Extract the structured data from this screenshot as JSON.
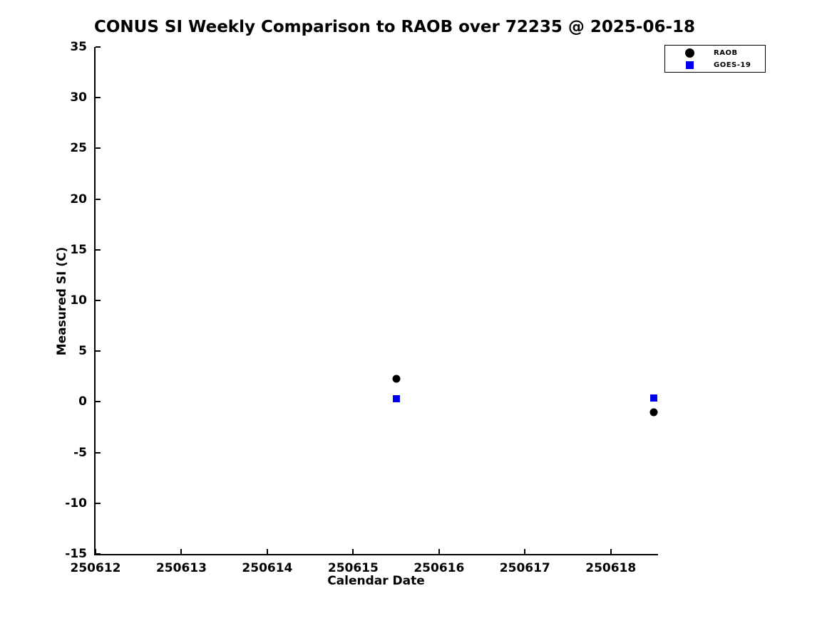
{
  "page": {
    "background": "#ffffff",
    "text_color": "#000000"
  },
  "chart_data": {
    "type": "scatter",
    "title": "CONUS SI Weekly Comparison to RAOB over 72235 @ 2025-06-18",
    "xlabel": "Calendar Date",
    "ylabel": "Measured SI (C)",
    "xlim": [
      250612,
      250618.55
    ],
    "ylim": [
      -15,
      35
    ],
    "x_ticks": [
      250612,
      250613,
      250614,
      250615,
      250616,
      250617,
      250618
    ],
    "y_ticks": [
      35,
      30,
      25,
      20,
      15,
      10,
      5,
      0,
      -5,
      -10,
      -15
    ],
    "grid": false,
    "axis_color": "#000000",
    "legend_position": "top-right",
    "series": [
      {
        "name": "RAOB",
        "marker": "circle",
        "color": "#000000",
        "marker_size_px": 11,
        "legend_marker_size_px": 13,
        "points": [
          {
            "x": 250615.5,
            "y": 2.3
          },
          {
            "x": 250618.5,
            "y": -1.0
          }
        ]
      },
      {
        "name": "GOES-19",
        "marker": "square",
        "color": "#0000ee",
        "marker_size_px": 10,
        "legend_marker_size_px": 11,
        "points": [
          {
            "x": 250615.5,
            "y": 0.3
          },
          {
            "x": 250618.5,
            "y": 0.4
          }
        ]
      }
    ]
  }
}
